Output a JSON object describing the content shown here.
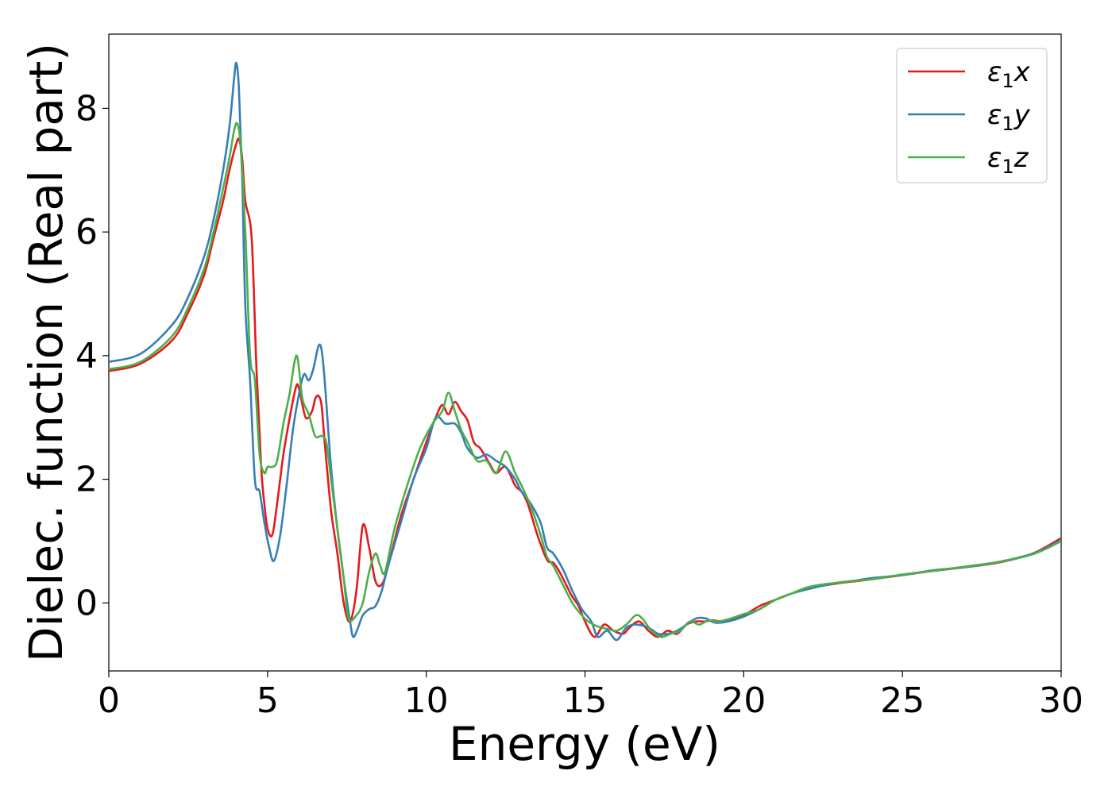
{
  "chart_data": {
    "type": "line",
    "title": "",
    "xlabel": "Energy (eV)",
    "ylabel": "Dielec. function (Real part)",
    "xlim": [
      0,
      30
    ],
    "ylim": [
      -1.1,
      9.2
    ],
    "xticks": [
      0,
      5,
      10,
      15,
      20,
      25,
      30
    ],
    "xtick_labels": [
      "0",
      "5",
      "10",
      "15",
      "20",
      "25",
      "30"
    ],
    "yticks": [
      0,
      2,
      4,
      6,
      8
    ],
    "ytick_labels": [
      "0",
      "2",
      "4",
      "6",
      "8"
    ],
    "grid": false,
    "legend_position": "top-right",
    "series": [
      {
        "name": "ε1x",
        "symbol": "ε",
        "subscript": "1",
        "suffix": "x",
        "color": "#e41a1c",
        "x": [
          0,
          1,
          2,
          2.5,
          3,
          3.3,
          3.6,
          3.8,
          4.0,
          4.1,
          4.2,
          4.3,
          4.5,
          4.65,
          4.8,
          4.9,
          5.0,
          5.15,
          5.3,
          5.5,
          5.7,
          5.9,
          6.0,
          6.2,
          6.4,
          6.5,
          6.6,
          6.7,
          6.8,
          7.0,
          7.2,
          7.4,
          7.6,
          7.8,
          8.0,
          8.2,
          8.4,
          8.6,
          8.8,
          9.2,
          9.6,
          10.0,
          10.3,
          10.5,
          10.7,
          10.9,
          11.1,
          11.3,
          11.5,
          11.7,
          12.0,
          12.2,
          12.5,
          12.8,
          13.0,
          13.2,
          13.5,
          13.8,
          14.0,
          14.2,
          14.4,
          14.6,
          14.8,
          15.0,
          15.3,
          15.6,
          15.9,
          16.2,
          16.4,
          16.7,
          17.0,
          17.3,
          17.6,
          17.9,
          18.2,
          18.5,
          18.8,
          19.0,
          19.3,
          19.6,
          20.0,
          20.5,
          21.0,
          21.5,
          22.0,
          22.5,
          23.0,
          23.5,
          24.0,
          25.0,
          26.0,
          27.0,
          28.0,
          29.0,
          29.5,
          30.0
        ],
        "y": [
          3.75,
          3.87,
          4.25,
          4.7,
          5.3,
          5.9,
          6.5,
          7.0,
          7.4,
          7.5,
          7.2,
          6.5,
          5.9,
          3.8,
          2.2,
          1.6,
          1.2,
          1.1,
          1.6,
          2.4,
          3.0,
          3.5,
          3.45,
          3.0,
          3.1,
          3.3,
          3.35,
          3.2,
          2.6,
          1.5,
          0.8,
          0.0,
          -0.3,
          0.2,
          1.25,
          0.9,
          0.35,
          0.3,
          0.6,
          1.4,
          2.0,
          2.6,
          3.0,
          3.2,
          3.05,
          3.25,
          3.1,
          2.95,
          2.6,
          2.5,
          2.25,
          2.1,
          2.2,
          1.9,
          1.8,
          1.6,
          1.1,
          0.7,
          0.65,
          0.5,
          0.3,
          0.1,
          -0.05,
          -0.3,
          -0.55,
          -0.35,
          -0.45,
          -0.5,
          -0.4,
          -0.3,
          -0.45,
          -0.55,
          -0.45,
          -0.5,
          -0.35,
          -0.3,
          -0.3,
          -0.28,
          -0.3,
          -0.28,
          -0.2,
          -0.05,
          0.05,
          0.15,
          0.25,
          0.28,
          0.32,
          0.35,
          0.38,
          0.45,
          0.52,
          0.58,
          0.65,
          0.78,
          0.9,
          1.05
        ]
      },
      {
        "name": "ε1y",
        "symbol": "ε",
        "subscript": "1",
        "suffix": "y",
        "color": "#377eb8",
        "x": [
          0,
          1,
          2,
          2.5,
          3,
          3.3,
          3.6,
          3.8,
          3.95,
          4.02,
          4.1,
          4.2,
          4.3,
          4.45,
          4.6,
          4.75,
          4.9,
          5.05,
          5.2,
          5.4,
          5.6,
          5.8,
          6.0,
          6.15,
          6.3,
          6.45,
          6.6,
          6.7,
          6.8,
          7.0,
          7.2,
          7.4,
          7.6,
          7.7,
          7.85,
          8.0,
          8.2,
          8.4,
          8.6,
          8.8,
          9.2,
          9.6,
          10.0,
          10.3,
          10.6,
          10.9,
          11.1,
          11.3,
          11.6,
          11.9,
          12.2,
          12.5,
          12.8,
          13.0,
          13.3,
          13.6,
          13.8,
          14.0,
          14.3,
          14.6,
          14.9,
          15.2,
          15.4,
          15.7,
          16.0,
          16.3,
          16.6,
          17.0,
          17.3,
          17.6,
          17.9,
          18.2,
          18.5,
          18.8,
          19.1,
          19.5,
          20.0,
          20.5,
          21.0,
          21.5,
          22.0,
          22.5,
          23.0,
          23.5,
          24.0,
          25.0,
          26.0,
          27.0,
          28.0,
          29.0,
          29.5,
          30.0
        ],
        "y": [
          3.9,
          4.03,
          4.5,
          4.95,
          5.6,
          6.2,
          7.0,
          7.7,
          8.5,
          8.73,
          8.3,
          6.9,
          4.8,
          3.6,
          2.0,
          1.8,
          1.3,
          0.9,
          0.68,
          1.1,
          1.9,
          2.8,
          3.4,
          3.7,
          3.6,
          3.8,
          4.15,
          4.1,
          3.6,
          2.2,
          1.2,
          0.4,
          -0.3,
          -0.55,
          -0.4,
          -0.2,
          -0.1,
          -0.05,
          0.2,
          0.6,
          1.3,
          2.0,
          2.5,
          3.0,
          2.9,
          2.9,
          2.75,
          2.5,
          2.35,
          2.4,
          2.3,
          2.2,
          2.0,
          1.8,
          1.6,
          1.3,
          0.9,
          0.8,
          0.55,
          0.2,
          -0.1,
          -0.3,
          -0.55,
          -0.45,
          -0.6,
          -0.4,
          -0.35,
          -0.4,
          -0.5,
          -0.5,
          -0.45,
          -0.35,
          -0.25,
          -0.25,
          -0.32,
          -0.3,
          -0.22,
          -0.1,
          0.05,
          0.15,
          0.22,
          0.28,
          0.33,
          0.36,
          0.4,
          0.45,
          0.53,
          0.58,
          0.66,
          0.78,
          0.88,
          1.02
        ]
      },
      {
        "name": "ε1z",
        "symbol": "ε",
        "subscript": "1",
        "suffix": "z",
        "color": "#4daf4a",
        "x": [
          0,
          1,
          2,
          2.5,
          3,
          3.3,
          3.6,
          3.8,
          3.95,
          4.05,
          4.15,
          4.3,
          4.45,
          4.6,
          4.75,
          4.9,
          5.0,
          5.15,
          5.3,
          5.5,
          5.7,
          5.85,
          5.95,
          6.1,
          6.3,
          6.5,
          6.7,
          6.85,
          7.0,
          7.2,
          7.4,
          7.55,
          7.8,
          8.0,
          8.2,
          8.4,
          8.55,
          8.7,
          9.0,
          9.4,
          9.8,
          10.2,
          10.5,
          10.7,
          10.9,
          11.1,
          11.3,
          11.6,
          11.9,
          12.2,
          12.5,
          12.8,
          13.0,
          13.3,
          13.6,
          13.8,
          14.0,
          14.3,
          14.6,
          14.9,
          15.1,
          15.4,
          15.7,
          16.0,
          16.3,
          16.6,
          16.8,
          17.1,
          17.4,
          17.7,
          18.0,
          18.3,
          18.6,
          18.9,
          19.2,
          19.6,
          20.0,
          20.5,
          21.0,
          21.5,
          22.0,
          22.5,
          23.0,
          23.5,
          24.0,
          25.0,
          26.0,
          27.0,
          28.0,
          29.0,
          29.5,
          30.0
        ],
        "y": [
          3.78,
          3.9,
          4.32,
          4.78,
          5.4,
          6.0,
          6.7,
          7.2,
          7.65,
          7.75,
          7.4,
          6.0,
          4.0,
          3.6,
          2.4,
          2.1,
          2.2,
          2.2,
          2.3,
          2.9,
          3.4,
          3.9,
          3.95,
          3.3,
          3.05,
          2.7,
          2.7,
          2.6,
          2.0,
          1.2,
          0.4,
          -0.25,
          -0.2,
          0.0,
          0.5,
          0.8,
          0.6,
          0.5,
          1.2,
          1.9,
          2.5,
          2.9,
          3.1,
          3.4,
          3.1,
          2.8,
          2.6,
          2.3,
          2.3,
          2.1,
          2.45,
          2.1,
          1.9,
          1.55,
          1.1,
          0.75,
          0.6,
          0.3,
          0.0,
          -0.2,
          -0.3,
          -0.38,
          -0.42,
          -0.45,
          -0.35,
          -0.2,
          -0.25,
          -0.45,
          -0.55,
          -0.5,
          -0.45,
          -0.3,
          -0.35,
          -0.28,
          -0.3,
          -0.25,
          -0.18,
          -0.1,
          0.05,
          0.15,
          0.25,
          0.3,
          0.33,
          0.36,
          0.38,
          0.46,
          0.52,
          0.59,
          0.66,
          0.77,
          0.87,
          1.0
        ]
      }
    ]
  }
}
